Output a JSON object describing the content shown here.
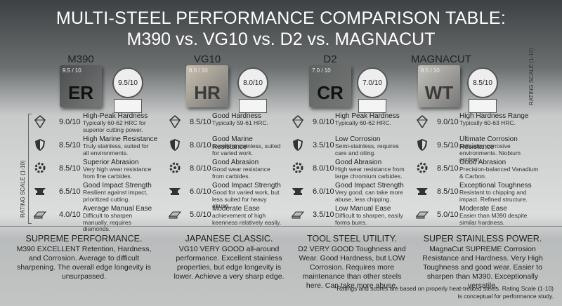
{
  "header": {
    "title_line1": "MULTI-STEEL PERFORMANCE COMPARISON TABLE:",
    "title_line2": "M390 vs. VG10 vs. D2 vs. MAGNACUT"
  },
  "scale_label_top": "RATING SCALE (1-10)",
  "scale_label_side": "RATING SCALE (1-10)",
  "steels": [
    {
      "name": "M390",
      "cube_label": "ER",
      "cube_score": "9.5 / 10",
      "score": "9.5/10",
      "rows": [
        {
          "score": "9.0/10",
          "title": "High-Peak Hardness",
          "desc": "Typically 60-62 HRC for superior cutting power."
        },
        {
          "score": "8.5/10",
          "title": "High Marine Resistance",
          "desc": "Truly stainless, suited for all environments."
        },
        {
          "score": "8.5/10",
          "title": "Superior Abrasion",
          "desc": "Very high wear resistance from fine carbides."
        },
        {
          "score": "6.5/10",
          "title": "Good Impact Strength",
          "desc": "Resilient against impact, prioritized cutting."
        },
        {
          "score": "4.0/10",
          "title": "Average Manual Ease",
          "desc": "Difficult to sharpen manually, requires diamonds."
        }
      ],
      "summary_title": "SUPREME PERFORMANCE.",
      "summary_text": "M390 EXCELLENT Retention, Hardness, and Corrosion. Average to difficult sharpening. The overall edge longevity is unsurpassed."
    },
    {
      "name": "VG10",
      "cube_label": "HR",
      "cube_score": "8.0 / 10",
      "score": "8.0/10",
      "rows": [
        {
          "score": "8.5/10",
          "title": "Good Hardness",
          "desc": "Typically 59-61 HRC."
        },
        {
          "score": "8.0/10",
          "title": "Good Marine Resistance",
          "desc": "Excellent stainless, suited for varied work."
        },
        {
          "score": "8.0/10",
          "title": "Good Abrasion",
          "desc": "Good wear resistance from carbides."
        },
        {
          "score": "6.0/10",
          "title": "Good Impact Strength",
          "desc": "Good for varied work, but less suited for heavy abuse."
        },
        {
          "score": "5.0/10",
          "title": "Moderate Ease",
          "desc": "achievement of high keenness relatively easily."
        }
      ],
      "summary_title": "JAPANESE CLASSIC.",
      "summary_text": "VG10 VERY GOOD all-around performance. Excellent stainless properties, but edge longevity is lower. Achieve a very sharp edge."
    },
    {
      "name": "D2",
      "cube_label": "CR",
      "cube_score": "7.0 / 10",
      "score": "7.0/10",
      "rows": [
        {
          "score": "9.0/10",
          "title": "High Peak Hardness",
          "desc": "Typically 60-62 HRC."
        },
        {
          "score": "3.5/10",
          "title": "Low Corrosion",
          "desc": "Semi-stainless, requires care and oiling."
        },
        {
          "score": "8.0/10",
          "title": "Good Abrasion",
          "desc": "High wear resistance from large chromium carbides."
        },
        {
          "score": "6.0/10",
          "title": "Good Impact Strength",
          "desc": "Very good, can take more abuse, less chipping."
        },
        {
          "score": "3.5/10",
          "title": "Low Manual Ease",
          "desc": "Difficult to sharpen, easily forms burrs."
        }
      ],
      "summary_title": "TOOL STEEL UTILITY.",
      "summary_text": "D2 VERY GOOD Toughness and Wear. Good Hardness, but LOW Corrosion. Requires more maintenance than other steels here. Can take more abuse."
    },
    {
      "name": "MAGNACUT",
      "cube_label": "WT",
      "cube_score": "8.5 / 10",
      "score": "8.5/10",
      "rows": [
        {
          "score": "9.0/10",
          "title": "High Hardness Range",
          "desc": "Typically 60-63 HRC."
        },
        {
          "score": "9.5/10",
          "title": "Ultimate Corrosion Resistance",
          "desc": "saltwater, corrosive environments. Niobium content."
        },
        {
          "score": "8.5/10",
          "title": "Good Abrasion",
          "desc": "Precision-balanced Vanadium & Carbon."
        },
        {
          "score": "8.5/10",
          "title": "Exceptional Toughness",
          "desc": "Resistant to chipping and impact. Refined structure."
        },
        {
          "score": "5.0/10",
          "title": "Moderate Ease",
          "desc": "Easier than M390 despite similar hardness."
        }
      ],
      "summary_title": "SUPER STAINLESS POWER.",
      "summary_text": "MagnaCut SUPREME Corrosion Resistance and Hardness. Very High Toughness and good wear. Easier to sharpen than M390. Exceptionally versatile."
    }
  ],
  "footnote": "*Ratings and scores are based on properly heat-treated steels. Rating Scale (1-10) is conceptual for performance study."
}
